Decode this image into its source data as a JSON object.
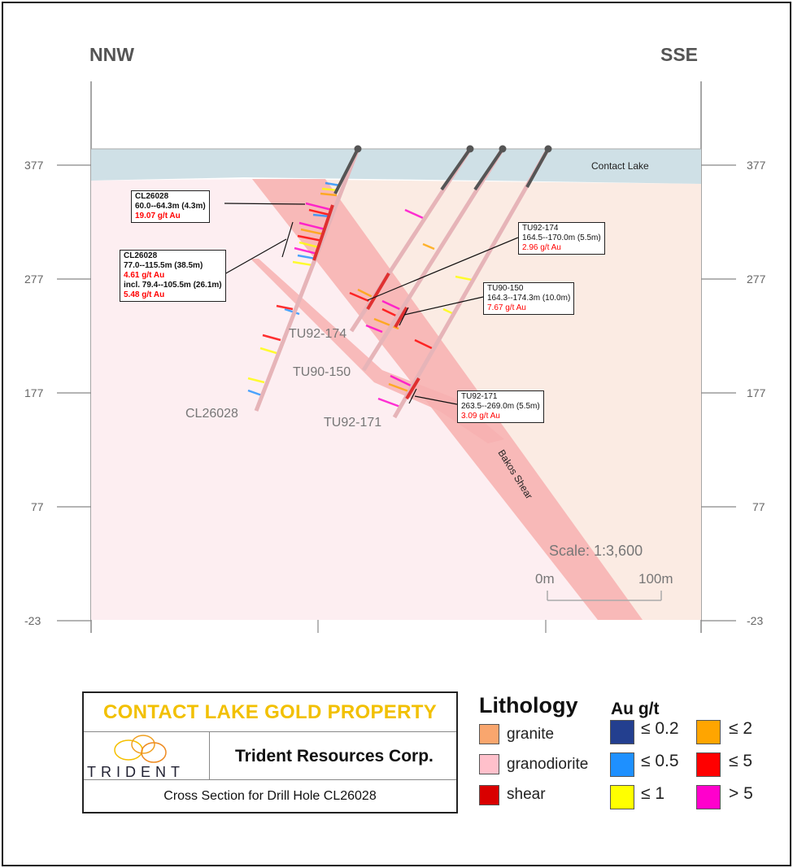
{
  "directions": {
    "left": "NNW",
    "right": "SSE"
  },
  "elevation_ticks": [
    "377",
    "277",
    "177",
    "77",
    "-23"
  ],
  "lake_label": "Contact Lake",
  "shear_label": "Bakos Shear",
  "holes": [
    {
      "name": "CL26028"
    },
    {
      "name": "TU92-174"
    },
    {
      "name": "TU90-150"
    },
    {
      "name": "TU92-171"
    }
  ],
  "callouts": [
    {
      "hole": "CL26028",
      "interval": "60.0--64.3m (4.3m)",
      "grade": "19.07 g/t Au"
    },
    {
      "hole": "CL26028",
      "interval": "77.0--115.5m (38.5m)",
      "grade": "4.61 g/t Au",
      "incl_interval": "incl. 79.4--105.5m (26.1m)",
      "incl_grade": "5.48 g/t Au"
    },
    {
      "hole": "TU92-174",
      "interval": "164.5--170.0m (5.5m)",
      "grade": "2.96 g/t Au"
    },
    {
      "hole": "TU90-150",
      "interval": "164.3--174.3m (10.0m)",
      "grade": "7.67 g/t Au"
    },
    {
      "hole": "TU92-171",
      "interval": "263.5--269.0m (5.5m)",
      "grade": "3.09 g/t Au"
    }
  ],
  "scale": {
    "label": "Scale: 1:3,600",
    "start": "0m",
    "end": "100m"
  },
  "title_block": {
    "property": "CONTACT LAKE GOLD PROPERTY",
    "logo_text": "TRIDENT",
    "company": "Trident Resources Corp.",
    "subtitle": "Cross Section for Drill Hole CL26028"
  },
  "legend": {
    "lithology_title": "Lithology",
    "lithology": [
      {
        "label": "granite",
        "color": "#f9a66e"
      },
      {
        "label": "granodiorite",
        "color": "#ffc0cb"
      },
      {
        "label": "shear",
        "color": "#d90000"
      }
    ],
    "au_title": "Au g/t",
    "au": [
      {
        "label": "≤ 0.2",
        "color": "#233f8f"
      },
      {
        "label": "≤ 0.5",
        "color": "#1e90ff"
      },
      {
        "label": "≤ 1",
        "color": "#ffff00"
      },
      {
        "label": "≤ 2",
        "color": "#ffa500"
      },
      {
        "label": "≤ 5",
        "color": "#ff0000"
      },
      {
        "label": "> 5",
        "color": "#ff00cc"
      }
    ]
  }
}
